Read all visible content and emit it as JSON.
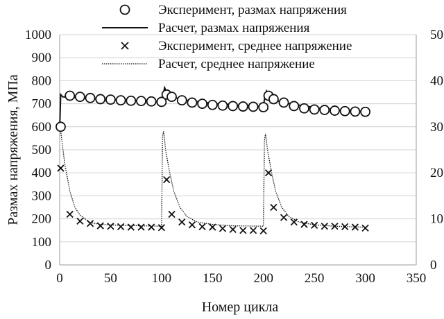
{
  "chart_data": {
    "type": "line",
    "xlabel": "Номер цикла",
    "ylabel": "Размах напряжения, МПа",
    "xlim": [
      0,
      350
    ],
    "ylim": [
      0,
      1000
    ],
    "y2lim": [
      0,
      50
    ],
    "x_ticks": [
      "0",
      "50",
      "100",
      "150",
      "200",
      "250",
      "300",
      "350"
    ],
    "y_ticks": [
      "0",
      "100",
      "200",
      "300",
      "400",
      "500",
      "600",
      "700",
      "800",
      "900",
      "1000"
    ],
    "y2_ticks": [
      "0",
      "10",
      "20",
      "30",
      "40",
      "50"
    ],
    "grid": "horizontal",
    "legend_position": "top",
    "legend": [
      "Эксперимент, размах напряжения",
      "Расчет, размах напряжения",
      "Эксперимент, среднее напряжение",
      "Расчет, среднее напряжение"
    ],
    "series": [
      {
        "name": "Эксперимент, размах напряжения",
        "axis": "left",
        "marker": "circle",
        "x": [
          1,
          10,
          20,
          30,
          40,
          50,
          60,
          70,
          80,
          90,
          100,
          105,
          110,
          120,
          130,
          140,
          150,
          160,
          170,
          180,
          190,
          200,
          205,
          210,
          220,
          230,
          240,
          250,
          260,
          270,
          280,
          290,
          300
        ],
        "y": [
          600,
          735,
          730,
          725,
          720,
          718,
          715,
          713,
          712,
          710,
          708,
          740,
          730,
          715,
          705,
          700,
          695,
          692,
          690,
          688,
          687,
          685,
          735,
          720,
          705,
          690,
          680,
          675,
          673,
          670,
          668,
          666,
          665
        ]
      },
      {
        "name": "Расчет, размах напряжения",
        "axis": "left",
        "line": "solid",
        "x": [
          0,
          1,
          3,
          10,
          20,
          40,
          60,
          80,
          100,
          101,
          103,
          106,
          110,
          120,
          140,
          160,
          180,
          200,
          201,
          203,
          206,
          210,
          220,
          240,
          260,
          280,
          300
        ],
        "y": [
          590,
          740,
          730,
          728,
          725,
          720,
          716,
          712,
          708,
          730,
          770,
          740,
          730,
          718,
          706,
          698,
          692,
          688,
          720,
          755,
          728,
          715,
          705,
          690,
          678,
          670,
          666
        ]
      },
      {
        "name": "Эксперимент, среднее напряжение",
        "axis": "right",
        "marker": "x",
        "x": [
          1,
          10,
          20,
          30,
          40,
          50,
          60,
          70,
          80,
          90,
          100,
          105,
          110,
          120,
          130,
          140,
          150,
          160,
          170,
          180,
          190,
          200,
          205,
          210,
          220,
          230,
          240,
          250,
          260,
          270,
          280,
          290,
          300
        ],
        "y": [
          21,
          11,
          9.5,
          9,
          8.5,
          8.4,
          8.3,
          8.2,
          8.2,
          8.2,
          8.1,
          18.5,
          11,
          9.3,
          8.7,
          8.3,
          8.2,
          7.9,
          7.7,
          7.5,
          7.5,
          7.4,
          20,
          12.5,
          10.3,
          9.3,
          8.8,
          8.6,
          8.4,
          8.4,
          8.3,
          8.2,
          8.0
        ]
      },
      {
        "name": "Расчет, среднее напряжение",
        "axis": "right",
        "line": "dotted",
        "x": [
          0,
          1,
          5,
          10,
          15,
          20,
          30,
          40,
          60,
          80,
          100,
          101,
          102,
          104,
          108,
          112,
          118,
          125,
          135,
          150,
          170,
          200,
          201,
          202,
          204,
          208,
          212,
          218,
          225,
          235,
          250,
          270,
          300
        ],
        "y": [
          30,
          29,
          22,
          16,
          12.5,
          10.8,
          9.2,
          8.8,
          8.6,
          8.5,
          8.4,
          28,
          29,
          25,
          20,
          16,
          12.5,
          10.5,
          9.3,
          8.8,
          8.5,
          8.4,
          27,
          28.5,
          25,
          20,
          16,
          12.5,
          10.5,
          9.3,
          8.7,
          8.4,
          8.2
        ]
      }
    ]
  }
}
